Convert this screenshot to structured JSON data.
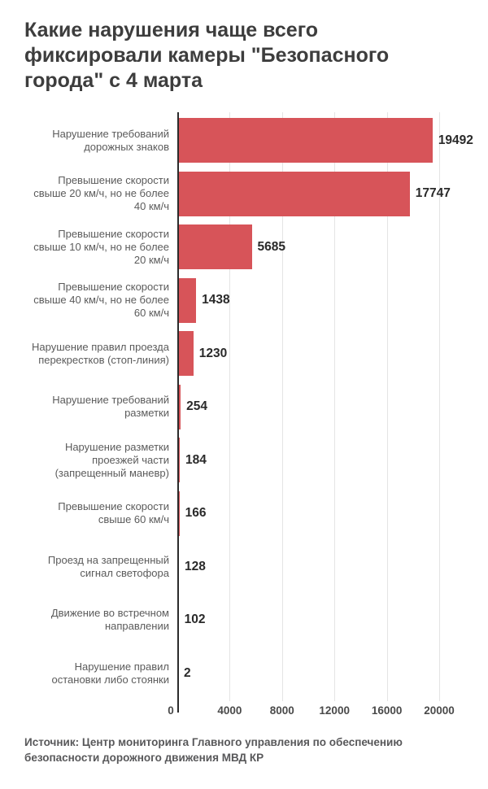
{
  "title": "Какие нарушения чаще всего фиксировали камеры \"Безопасного города\" с 4 марта",
  "source": "Источник: Центр мониторинга Главного управления по обеспечению безопасности дорожного движения МВД КР",
  "chart_data": {
    "type": "bar",
    "orientation": "horizontal",
    "title": "Какие нарушения чаще всего фиксировали камеры \"Безопасного города\" с 4 марта",
    "categories": [
      "Нарушение требований дорожных знаков",
      "Превышение скорости свыше 20 км/ч, но не более 40 км/ч",
      "Превышение скорости свыше 10 км/ч, но не более 20 км/ч",
      "Превышение скорости свыше 40 км/ч, но не более 60 км/ч",
      "Нарушение правил проезда перекрестков (стоп-линия)",
      "Нарушение требований разметки",
      "Нарушение разметки проезжей части (запрещенный маневр)",
      "Превышение скорости свыше 60 км/ч",
      "Проезд на запрещенный сигнал светофора",
      "Движение во встречном направлении",
      "Нарушение правил остановки либо стоянки"
    ],
    "values": [
      19492,
      17747,
      5685,
      1438,
      1230,
      254,
      184,
      166,
      128,
      102,
      2
    ],
    "value_labels": [
      "19492",
      "17747",
      "5685",
      "1438",
      "1230",
      "254",
      "184",
      "166",
      "128",
      "102",
      "2"
    ],
    "xlabel": "",
    "ylabel": "",
    "xlim": [
      0,
      20000
    ],
    "x_ticks": [
      0,
      4000,
      8000,
      12000,
      16000,
      20000
    ],
    "grid": true,
    "legend": "none",
    "bar_color": "#d75459",
    "source": "Источник: Центр мониторинга Главного управления по обеспечению безопасности дорожного движения МВД КР"
  }
}
